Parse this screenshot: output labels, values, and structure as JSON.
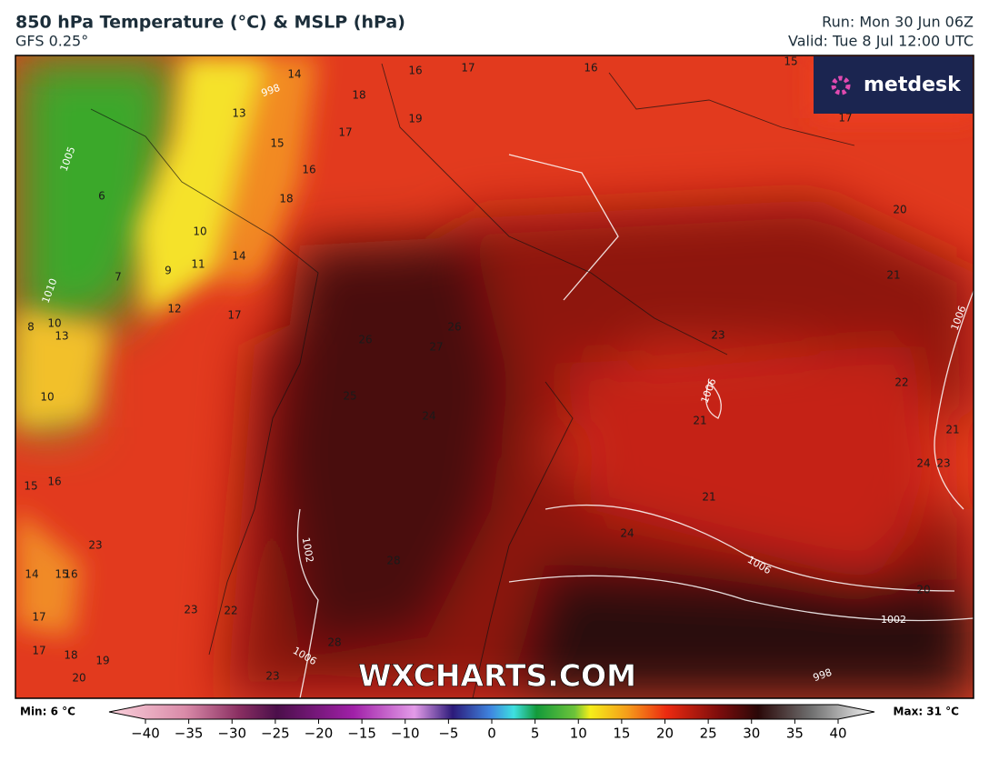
{
  "header": {
    "title": "850 hPa Temperature (°C) & MSLP (hPa)",
    "subtitle": "GFS 0.25°",
    "run": "Run: Mon 30 Jun 06Z",
    "valid": "Valid: Tue 8 Jul 12:00 UTC"
  },
  "logo": "metdesk",
  "watermark": "WXCHARTS.COM",
  "temperature_labels": [
    14,
    16,
    17,
    16,
    15,
    18,
    13,
    19,
    17,
    17,
    15,
    16,
    18,
    6,
    10,
    14,
    11,
    9,
    7,
    12,
    17,
    8,
    10,
    13,
    26,
    26,
    27,
    20,
    21,
    23,
    22,
    21,
    21,
    24,
    23,
    21,
    24,
    10,
    16,
    15,
    25,
    24,
    23,
    14,
    15,
    16,
    17,
    17,
    18,
    19,
    20,
    23,
    22,
    20,
    28,
    28,
    23
  ],
  "pressure_labels": [
    998,
    1005,
    1010,
    1006,
    1006,
    1002,
    1006,
    1002,
    1006,
    998
  ],
  "colorbar": {
    "min_text": "Min: 6 °C",
    "max_text": "Max: 31 °C",
    "ticks": [
      {
        "value": -40,
        "label": "−40"
      },
      {
        "value": -35,
        "label": "−35"
      },
      {
        "value": -30,
        "label": "−30"
      },
      {
        "value": -25,
        "label": "−25"
      },
      {
        "value": -20,
        "label": "−20"
      },
      {
        "value": -15,
        "label": "−15"
      },
      {
        "value": -10,
        "label": "−10"
      },
      {
        "value": -5,
        "label": "−5"
      },
      0,
      5,
      10,
      15,
      20,
      25,
      30,
      35,
      40
    ]
  }
}
